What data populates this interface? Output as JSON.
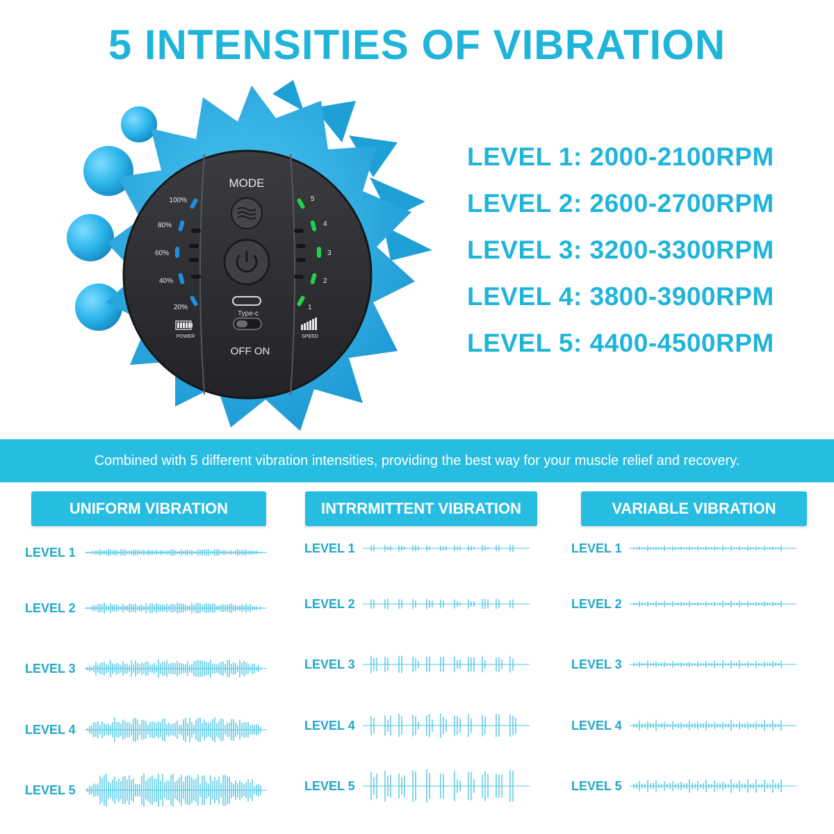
{
  "title": "5 INTENSITIES OF VIBRATION",
  "device": {
    "mode_label": "MODE",
    "power_levels": [
      "100%",
      "80%",
      "60%",
      "40%",
      "20%"
    ],
    "power_label": "POWER",
    "speed_levels": [
      "5",
      "4",
      "3",
      "2",
      "1"
    ],
    "speed_label": "SPEED",
    "port_label": "Type-c",
    "switch_label": "OFF ON",
    "colors": {
      "shell": "#29b6e6",
      "panel": "#2b2d31",
      "power_led": "#1e8fe0",
      "speed_led": "#20d24a"
    }
  },
  "levels": [
    "LEVEL 1: 2000-2100RPM",
    "LEVEL 2: 2600-2700RPM",
    "LEVEL 3: 3200-3300RPM",
    "LEVEL 4: 3800-3900RPM",
    "LEVEL 5: 4400-4500RPM"
  ],
  "banner": "Combined with 5 different vibration intensities, providing the best way for your muscle relief and recovery.",
  "columns": [
    {
      "title": "UNIFORM VIBRATION",
      "pattern": "uniform",
      "levels": [
        "LEVEL 1",
        "LEVEL 2",
        "LEVEL 3",
        "LEVEL 4",
        "LEVEL 5"
      ]
    },
    {
      "title": "INTRRMITTENT VIBRATION",
      "pattern": "intermittent",
      "levels": [
        "LEVEL 1",
        "LEVEL 2",
        "LEVEL 3",
        "LEVEL 4",
        "LEVEL 5"
      ]
    },
    {
      "title": "VARIABLE VIBRATION",
      "pattern": "variable",
      "levels": [
        "LEVEL 1",
        "LEVEL 2",
        "LEVEL 3",
        "LEVEL 4",
        "LEVEL 5"
      ]
    }
  ],
  "colors": {
    "accent": "#1fb4da",
    "banner": "#27bde0",
    "wave": "#4cc4e3"
  }
}
